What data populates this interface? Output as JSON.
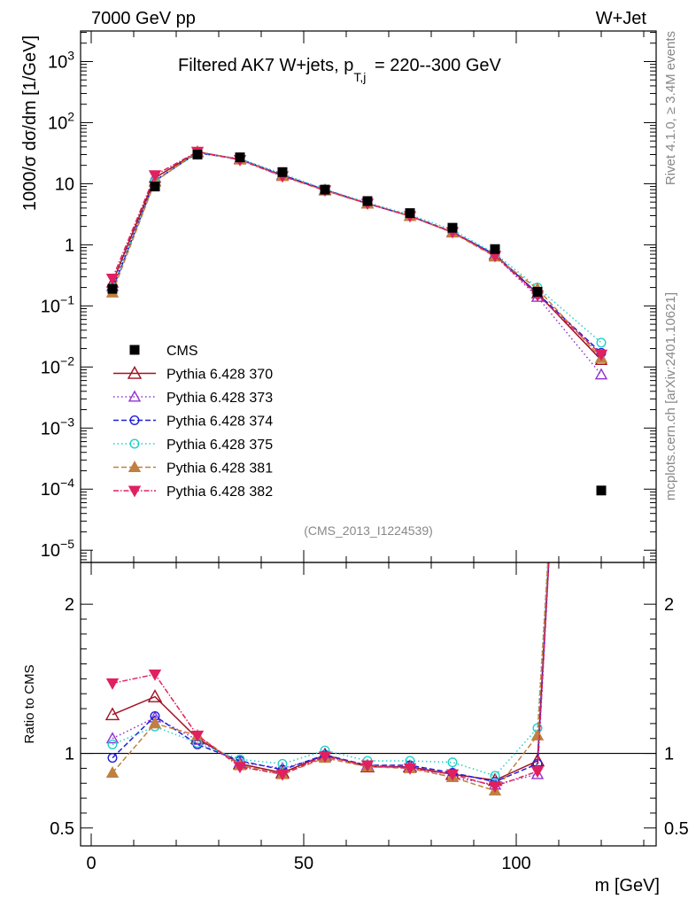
{
  "header": {
    "left": "7000 GeV pp",
    "right": "W+Jet"
  },
  "side": {
    "rivet": "Rivet 4.1.0, ≥ 3.4M events",
    "mcplots": "mcplots.cern.ch [arXiv:2401.10621]"
  },
  "chart_data": {
    "type": "line",
    "title_main": "Filtered AK7 W+jets, p",
    "title_sub": "T,j",
    "title_rest": " = 220--300 GeV",
    "analysis": "(CMS_2013_I1224539)",
    "xlabel": "m [GeV]",
    "ylabel": "1000/σ  dσ/dm [1/GeV]",
    "ratio_ylabel": "Ratio to CMS",
    "xlim": [
      -1,
      133
    ],
    "ylim_log": [
      -5.2,
      3.5
    ],
    "ratio_ylim": [
      0.38,
      2.28
    ],
    "x_ticks": [
      {
        "v": 0,
        "label": "0"
      },
      {
        "v": 50,
        "label": "50"
      },
      {
        "v": 100,
        "label": "100"
      }
    ],
    "y_ticks": [
      {
        "v": 3,
        "base": "10",
        "exp": "3"
      },
      {
        "v": 2,
        "base": "10",
        "exp": "2"
      },
      {
        "v": 1,
        "base": "10",
        "exp": ""
      },
      {
        "v": 0,
        "base": "1",
        "exp": ""
      },
      {
        "v": -1,
        "base": "10",
        "exp": "−1"
      },
      {
        "v": -2,
        "base": "10",
        "exp": "−2"
      },
      {
        "v": -3,
        "base": "10",
        "exp": "−3"
      },
      {
        "v": -4,
        "base": "10",
        "exp": "−4"
      },
      {
        "v": -5,
        "base": "10",
        "exp": "−5"
      }
    ],
    "ratio_ticks": [
      {
        "v": 0.5,
        "label": "0.5"
      },
      {
        "v": 1,
        "label": "1"
      },
      {
        "v": 2,
        "label": "2"
      }
    ],
    "x": [
      5,
      15,
      25,
      35,
      45,
      55,
      65,
      75,
      85,
      95,
      105,
      120
    ],
    "data": {
      "name": "CMS",
      "values": [
        0.19,
        9.0,
        30.0,
        27.0,
        15.5,
        8.0,
        5.2,
        3.3,
        1.9,
        0.85,
        0.17,
        9.5e-05
      ]
    },
    "series": [
      {
        "name": "Pythia 6.428 370",
        "color": "#a01020",
        "dash": "",
        "marker": "triangle-up-open",
        "values": [
          0.24,
          12.5,
          33.0,
          25.0,
          13.5,
          7.9,
          4.75,
          2.95,
          1.6,
          0.69,
          0.16,
          0.013
        ]
      },
      {
        "name": "Pythia 6.428 373",
        "color": "#9030d0",
        "dash": "1.5,3",
        "marker": "triangle-up-open",
        "values": [
          0.21,
          11.0,
          32.5,
          25.5,
          14.0,
          7.8,
          4.7,
          2.95,
          1.6,
          0.66,
          0.14,
          0.0075
        ]
      },
      {
        "name": "Pythia 6.428 374",
        "color": "#2020d8",
        "dash": "6,3",
        "marker": "circle-open",
        "values": [
          0.185,
          11.3,
          32.0,
          25.2,
          13.8,
          8.0,
          4.72,
          2.98,
          1.63,
          0.69,
          0.16,
          0.017
        ]
      },
      {
        "name": "Pythia 6.428 375",
        "color": "#20d0c8",
        "dash": "1.5,3",
        "marker": "circle-open",
        "values": [
          0.2,
          11.0,
          32.0,
          25.5,
          14.5,
          8.1,
          4.9,
          3.1,
          1.75,
          0.72,
          0.2,
          0.025
        ]
      },
      {
        "name": "Pythia 6.428 381",
        "color": "#c08040",
        "dash": "6,3",
        "marker": "triangle-up",
        "values": [
          0.165,
          10.8,
          33.5,
          24.8,
          13.3,
          7.7,
          4.7,
          2.95,
          1.58,
          0.64,
          0.19,
          0.014
        ]
      },
      {
        "name": "Pythia 6.428 382",
        "color": "#e02060",
        "dash": "6,2,1.5,2",
        "marker": "triangle-down",
        "values": [
          0.28,
          13.8,
          33.5,
          24.5,
          13.3,
          7.8,
          4.75,
          2.95,
          1.62,
          0.66,
          0.15,
          0.016
        ]
      }
    ],
    "ratios": [
      [
        1.26,
        1.38,
        1.1,
        0.93,
        0.87,
        0.99,
        0.91,
        0.91,
        0.86,
        0.82,
        0.95
      ],
      [
        1.1,
        1.24,
        1.09,
        0.94,
        0.9,
        0.98,
        0.92,
        0.91,
        0.84,
        0.79,
        0.86
      ],
      [
        0.97,
        1.25,
        1.06,
        0.95,
        0.89,
        0.99,
        0.92,
        0.92,
        0.87,
        0.81,
        0.93
      ],
      [
        1.06,
        1.18,
        1.07,
        0.96,
        0.93,
        1.02,
        0.95,
        0.95,
        0.94,
        0.85,
        1.17
      ],
      [
        0.87,
        1.2,
        1.12,
        0.92,
        0.86,
        0.97,
        0.91,
        0.9,
        0.84,
        0.75,
        1.12
      ],
      [
        1.47,
        1.53,
        1.12,
        0.91,
        0.86,
        0.98,
        0.92,
        0.9,
        0.86,
        0.78,
        0.88
      ]
    ]
  }
}
